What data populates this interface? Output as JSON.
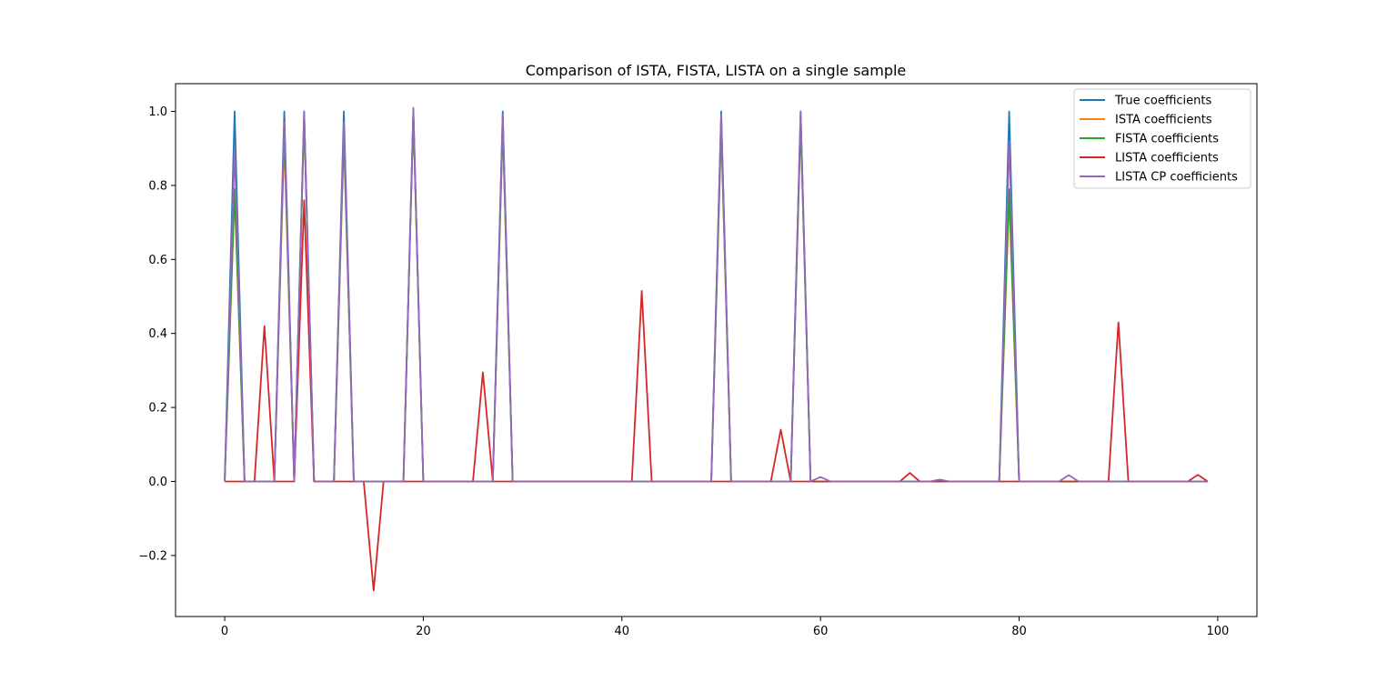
{
  "chart_data": {
    "type": "line",
    "title": "Comparison of ISTA, FISTA, LISTA on a single sample",
    "xlabel": "",
    "ylabel": "",
    "xlim": [
      -4.95,
      103.95
    ],
    "ylim": [
      -0.365,
      1.075
    ],
    "xticks": [
      0,
      20,
      40,
      60,
      80,
      100
    ],
    "yticks": [
      -0.2,
      0.0,
      0.2,
      0.4,
      0.6,
      0.8,
      1.0
    ],
    "xtick_labels": [
      "0",
      "20",
      "40",
      "60",
      "80",
      "100"
    ],
    "ytick_labels": [
      "−0.2",
      "0.0",
      "0.2",
      "0.4",
      "0.6",
      "0.8",
      "1.0"
    ],
    "grid": false,
    "legend_position": "top-right",
    "x": {
      "start": 0,
      "end": 99
    },
    "series": [
      {
        "name": "True coefficients",
        "color": "#1f77b4",
        "nonzero": {
          "1": 1.0,
          "6": 1.0,
          "8": 1.0,
          "12": 1.0,
          "19": 1.0,
          "28": 1.0,
          "50": 1.0,
          "58": 1.0,
          "79": 1.0
        }
      },
      {
        "name": "ISTA coefficients",
        "color": "#ff7f0e",
        "nonzero": {
          "1": 0.78,
          "6": 0.92,
          "8": 0.98,
          "12": 0.93,
          "19": 0.99,
          "28": 0.96,
          "50": 0.95,
          "58": 0.97,
          "79": 0.77
        }
      },
      {
        "name": "FISTA coefficients",
        "color": "#2ca02c",
        "nonzero": {
          "1": 0.79,
          "6": 0.95,
          "8": 0.98,
          "12": 0.94,
          "19": 0.99,
          "28": 0.96,
          "50": 0.96,
          "58": 0.97,
          "79": 0.79
        }
      },
      {
        "name": "LISTA coefficients",
        "color": "#d62728",
        "nonzero": {
          "4": 0.42,
          "8": 0.76,
          "15": -0.295,
          "26": 0.295,
          "42": 0.515,
          "56": 0.14,
          "69": 0.023,
          "90": 0.43,
          "98": 0.018
        }
      },
      {
        "name": "LISTA CP coefficients",
        "color": "#9467bd",
        "nonzero": {
          "1": 0.9,
          "6": 0.97,
          "8": 1.0,
          "12": 0.97,
          "19": 1.01,
          "28": 0.99,
          "50": 0.99,
          "58": 1.0,
          "60": 0.012,
          "72": 0.005,
          "79": 0.92,
          "85": 0.017
        }
      }
    ]
  }
}
